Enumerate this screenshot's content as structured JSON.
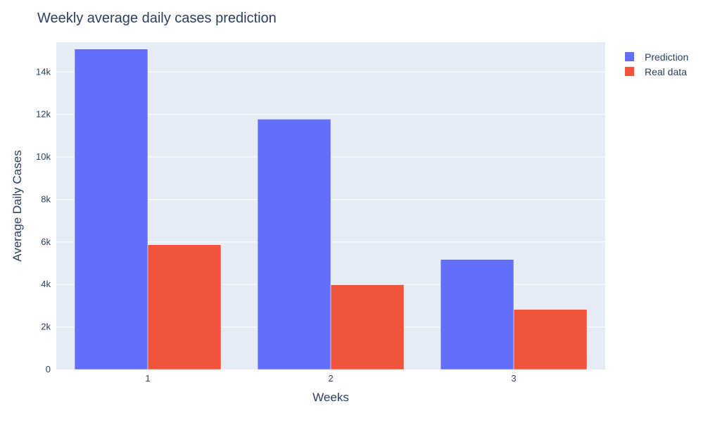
{
  "chart_data": {
    "type": "bar",
    "title": "Weekly average daily cases prediction",
    "xlabel": "Weeks",
    "ylabel": "Average Daily Cases",
    "categories": [
      "1",
      "2",
      "3"
    ],
    "series": [
      {
        "name": "Prediction",
        "color": "#636efa",
        "values": [
          15080,
          11780,
          5180
        ]
      },
      {
        "name": "Real data",
        "color": "#ef553b",
        "values": [
          5870,
          3990,
          2830
        ]
      }
    ],
    "ylim": [
      0,
      15400
    ],
    "yticks": [
      0,
      2000,
      4000,
      6000,
      8000,
      10000,
      12000,
      14000
    ],
    "ytick_labels": [
      "0",
      "2k",
      "4k",
      "6k",
      "8k",
      "10k",
      "12k",
      "14k"
    ],
    "grid": true,
    "legend": "top-right",
    "plot_background": "#e5ecf6"
  }
}
